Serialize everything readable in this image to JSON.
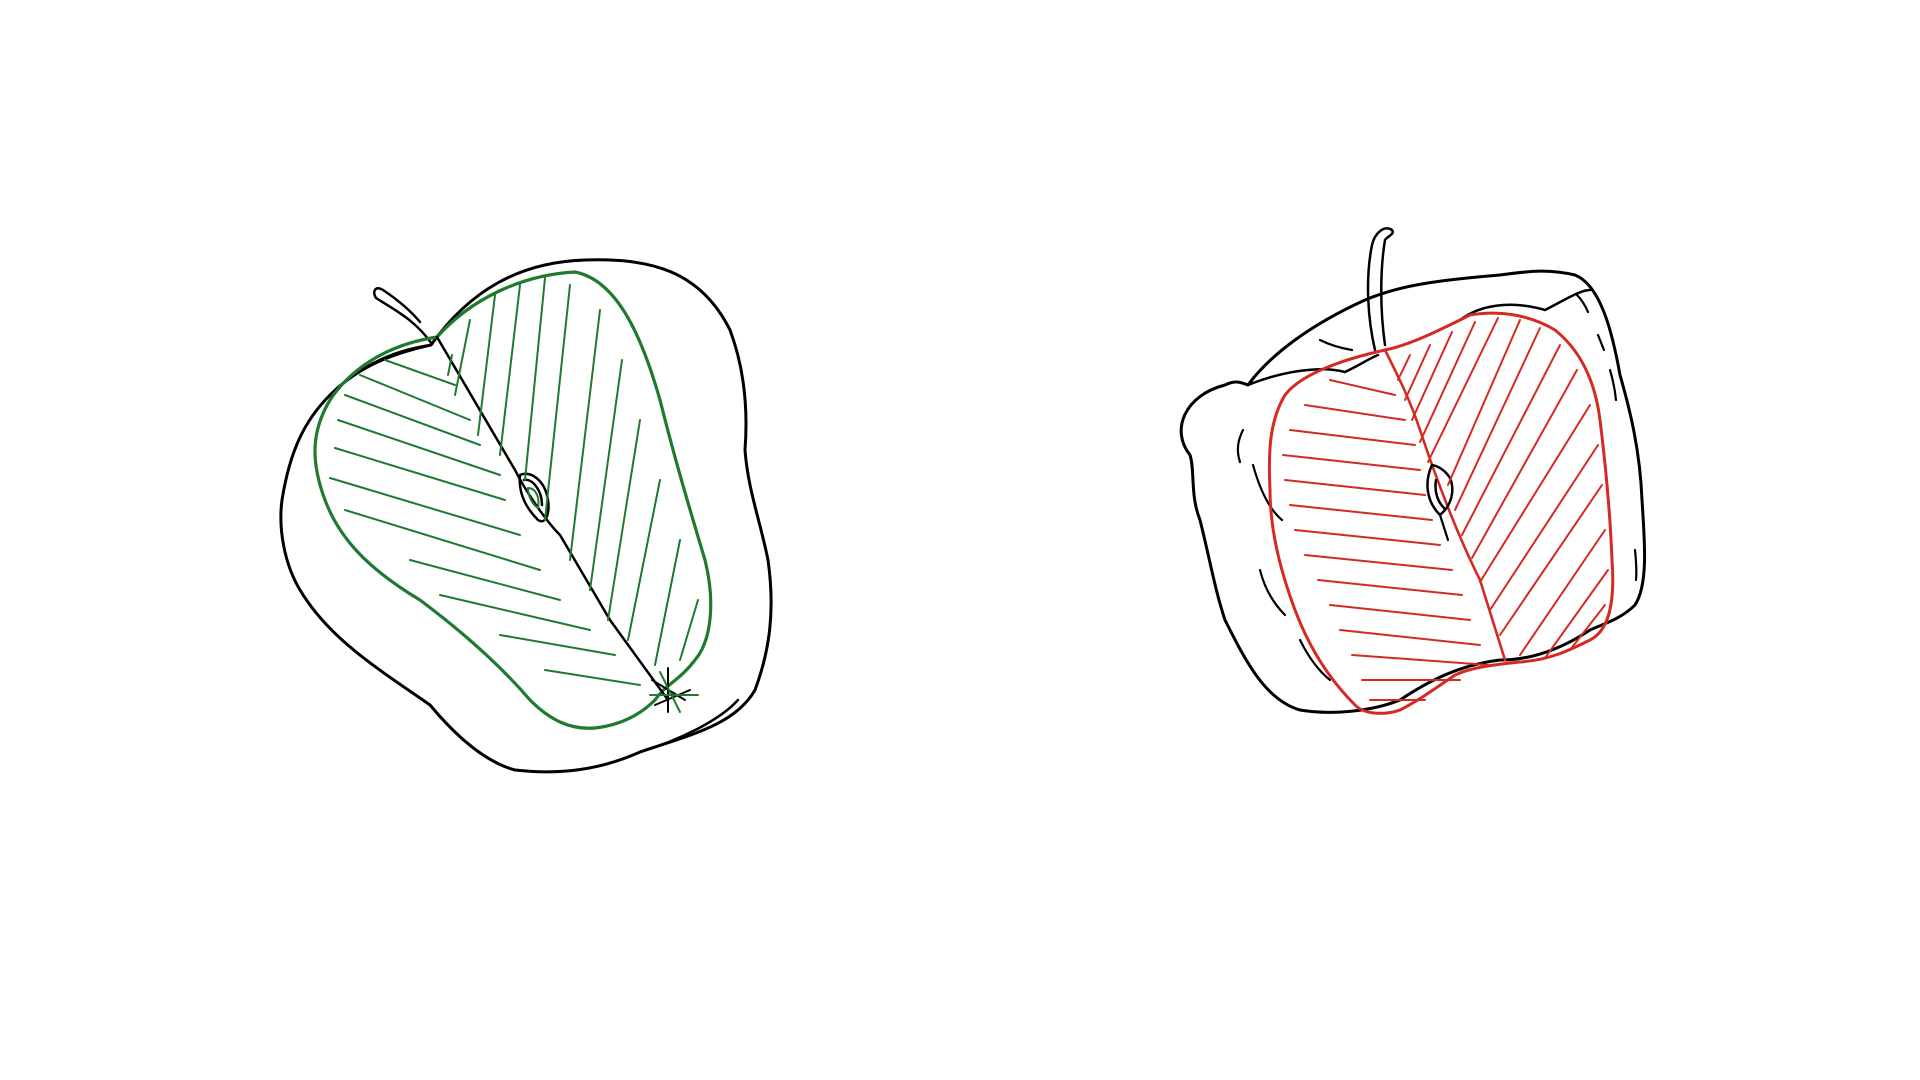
{
  "canvas": {
    "background": "#ffffff"
  },
  "drawings": [
    {
      "name": "green-apple-leaf-sketch",
      "outline_color": "#000000",
      "leaf_color": "#1f7a30"
    },
    {
      "name": "red-pepper-leaf-sketch",
      "outline_color": "#000000",
      "leaf_color": "#d42a22"
    }
  ]
}
